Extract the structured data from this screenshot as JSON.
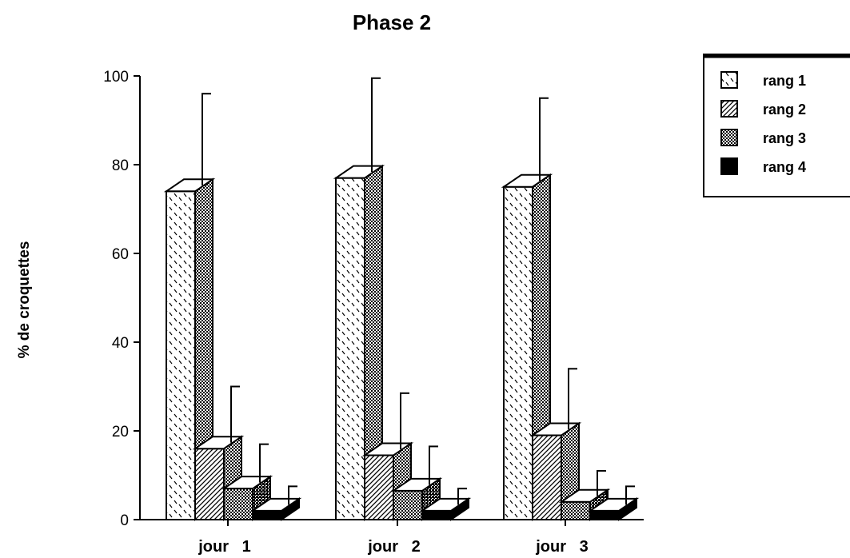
{
  "chart_data": {
    "type": "bar",
    "title": "Phase 2",
    "xlabel": "",
    "ylabel": "% de croquettes",
    "ylim": [
      0,
      100
    ],
    "yticks": [
      0,
      20,
      40,
      60,
      80,
      100
    ],
    "categories": [
      "jour   1",
      "jour   2",
      "jour   3"
    ],
    "series": [
      {
        "name": "rang 1",
        "values": [
          74,
          77,
          75
        ],
        "errors": [
          22,
          22.5,
          20
        ],
        "pattern": "dashes"
      },
      {
        "name": "rang 2",
        "values": [
          16,
          14.5,
          19
        ],
        "errors": [
          14,
          14,
          15
        ],
        "pattern": "hatch"
      },
      {
        "name": "rang 3",
        "values": [
          7,
          6.5,
          4
        ],
        "errors": [
          10,
          10,
          7
        ],
        "pattern": "crosshatch"
      },
      {
        "name": "rang 4",
        "values": [
          2,
          2,
          2
        ],
        "errors": [
          5.5,
          5,
          5.5
        ],
        "pattern": "solid"
      }
    ],
    "legend_position": "top-right",
    "grid": false,
    "style": "3d"
  }
}
